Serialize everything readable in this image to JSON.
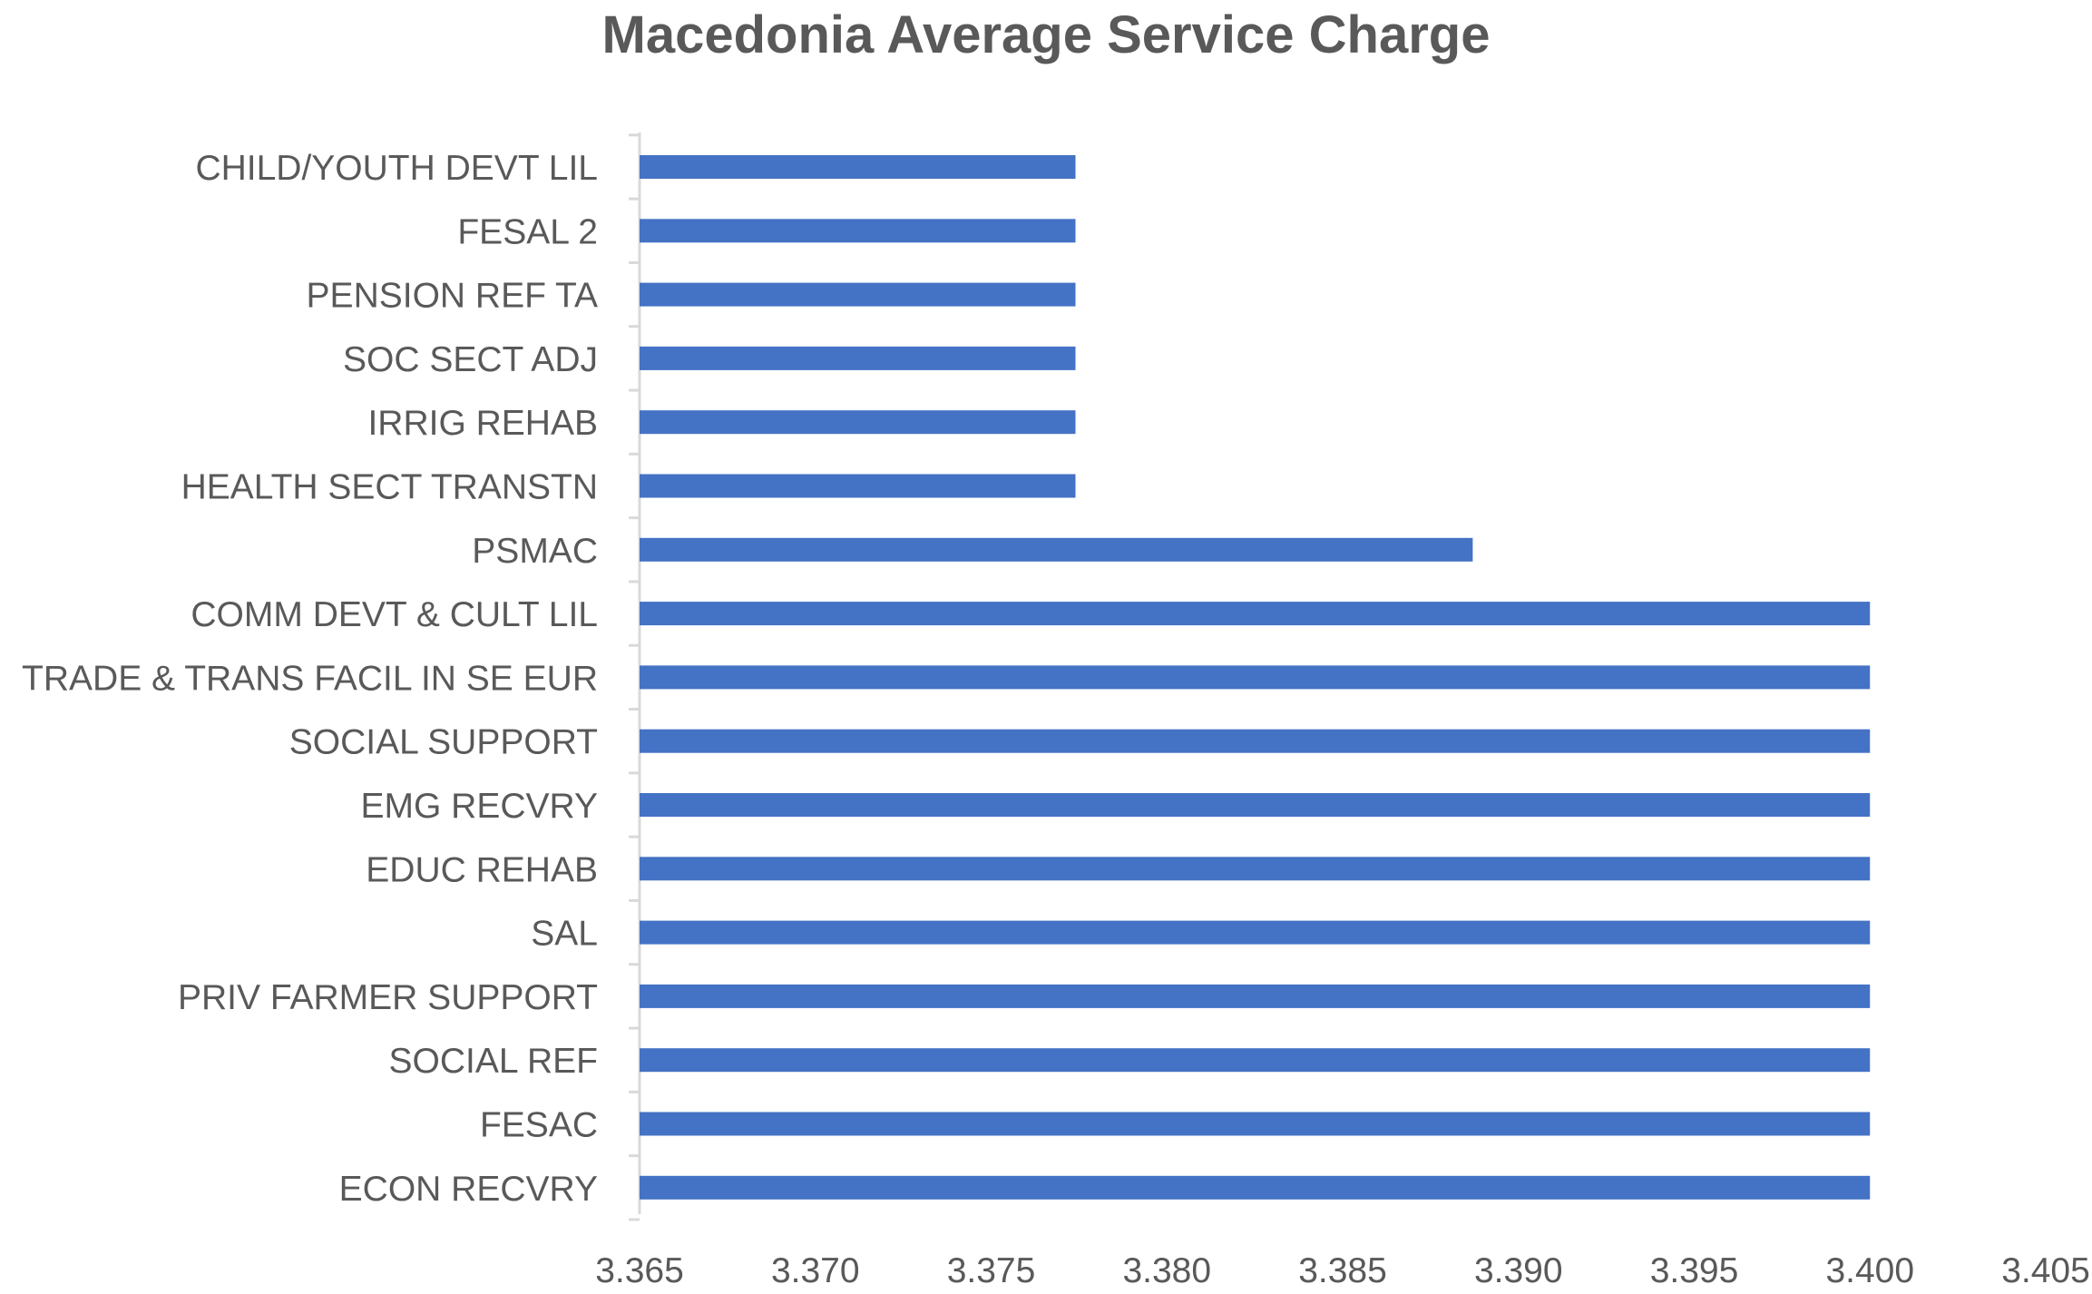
{
  "chart_data": {
    "type": "bar",
    "orientation": "horizontal",
    "title": "Macedonia Average Service Charge",
    "xlabel": "",
    "ylabel": "",
    "categories": [
      "CHILD/YOUTH DEVT LIL",
      "FESAL 2",
      "PENSION REF TA",
      "SOC SECT ADJ",
      "IRRIG REHAB",
      "HEALTH SECT TRANSTN",
      "PSMAC",
      "COMM DEVT & CULT LIL",
      "TRADE & TRANS FACIL IN SE EUR",
      "SOCIAL SUPPORT",
      "EMG RECVRY",
      "EDUC REHAB",
      "SAL",
      "PRIV FARMER SUPPORT",
      "SOCIAL REF",
      "FESAC",
      "ECON RECVRY"
    ],
    "values": [
      3.3774,
      3.3774,
      3.3774,
      3.3774,
      3.3774,
      3.3774,
      3.3887,
      3.4,
      3.4,
      3.4,
      3.4,
      3.4,
      3.4,
      3.4,
      3.4,
      3.4,
      3.4
    ],
    "xlim": [
      3.365,
      3.405
    ],
    "xticks": [
      "3.365",
      "3.370",
      "3.375",
      "3.380",
      "3.385",
      "3.390",
      "3.395",
      "3.400",
      "3.405"
    ],
    "grid": false,
    "legend": "none",
    "bar_color": "#4472C4",
    "axis_color": "#D9D9D9",
    "text_color": "#595959"
  }
}
